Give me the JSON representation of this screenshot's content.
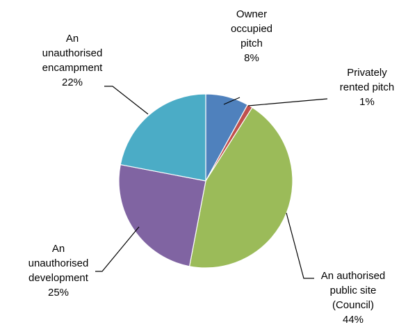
{
  "chart_data": {
    "type": "pie",
    "slices": [
      {
        "label_lines": [
          "Owner",
          "occupied",
          "pitch"
        ],
        "value": 8,
        "value_label": "8%",
        "color": "#4F81BD"
      },
      {
        "label_lines": [
          "Privately",
          "rented pitch"
        ],
        "value": 1,
        "value_label": "1%",
        "color": "#C0504D"
      },
      {
        "label_lines": [
          "An authorised",
          "public site",
          "(Council)"
        ],
        "value": 44,
        "value_label": "44%",
        "color": "#9BBB59"
      },
      {
        "label_lines": [
          "An",
          "unauthorised",
          "development"
        ],
        "value": 25,
        "value_label": "25%",
        "color": "#8064A2"
      },
      {
        "label_lines": [
          "An",
          "unauthorised",
          "encampment"
        ],
        "value": 22,
        "value_label": "22%",
        "color": "#4BACC6"
      }
    ],
    "start": "12 o'clock",
    "direction": "clockwise",
    "legend": "none",
    "data_labels": "outside with leader lines"
  }
}
